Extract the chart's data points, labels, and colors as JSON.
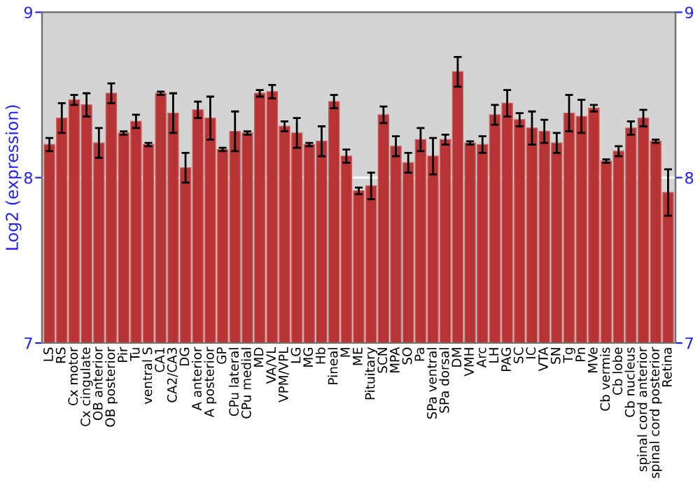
{
  "chart_data": {
    "type": "bar",
    "ylabel": "Log2 (expression)",
    "categories": [
      "LS",
      "RS",
      "Cx motor",
      "Cx cingulate",
      "OB anterior",
      "OB posterior",
      "Pir",
      "Tu",
      "ventral S",
      "CA1",
      "CA2/CA3",
      "DG",
      "A anterior",
      "A posterior",
      "GP",
      "CPu lateral",
      "CPu medial",
      "MD",
      "VA/VL",
      "VPM/VPL",
      "LG",
      "MG",
      "Hb",
      "Pineal",
      "M",
      "ME",
      "Pituitary",
      "SCN",
      "MPA",
      "SO",
      "Pa",
      "SPa ventral",
      "SPa dorsal",
      "DM",
      "VMH",
      "Arc",
      "LH",
      "PAG",
      "SC",
      "IC",
      "VTA",
      "SN",
      "Tg",
      "Pn",
      "MVe",
      "Cb vermis",
      "Cb lobe",
      "Cb nucleus",
      "spinal cord anterior",
      "spinal cord posterior",
      "Retina"
    ],
    "values": [
      8.2,
      8.36,
      8.47,
      8.44,
      8.21,
      8.51,
      8.27,
      8.34,
      8.2,
      8.51,
      8.39,
      8.06,
      8.41,
      8.36,
      8.17,
      8.28,
      8.27,
      8.51,
      8.52,
      8.31,
      8.27,
      8.2,
      8.22,
      8.46,
      8.13,
      7.92,
      7.95,
      8.38,
      8.19,
      8.09,
      8.23,
      8.13,
      8.23,
      8.64,
      8.21,
      8.2,
      8.38,
      8.45,
      8.35,
      8.3,
      8.28,
      8.21,
      8.39,
      8.37,
      8.42,
      8.1,
      8.16,
      8.3,
      8.36,
      8.22,
      7.91
    ],
    "errors": [
      0.04,
      0.09,
      0.03,
      0.07,
      0.09,
      0.06,
      0.01,
      0.04,
      0.01,
      0.01,
      0.12,
      0.09,
      0.05,
      0.13,
      0.01,
      0.12,
      0.01,
      0.02,
      0.04,
      0.03,
      0.09,
      0.01,
      0.09,
      0.04,
      0.04,
      0.02,
      0.08,
      0.05,
      0.06,
      0.06,
      0.07,
      0.11,
      0.03,
      0.09,
      0.01,
      0.05,
      0.06,
      0.08,
      0.04,
      0.1,
      0.07,
      0.06,
      0.11,
      0.1,
      0.02,
      0.01,
      0.03,
      0.04,
      0.05,
      0.01,
      0.14
    ],
    "color": "#b83434",
    "ylim": [
      7,
      9
    ],
    "yticks": [
      7,
      8,
      9
    ],
    "y2lim": [
      7,
      9
    ],
    "y2ticks": [
      7,
      8,
      9
    ],
    "grid": "y"
  }
}
